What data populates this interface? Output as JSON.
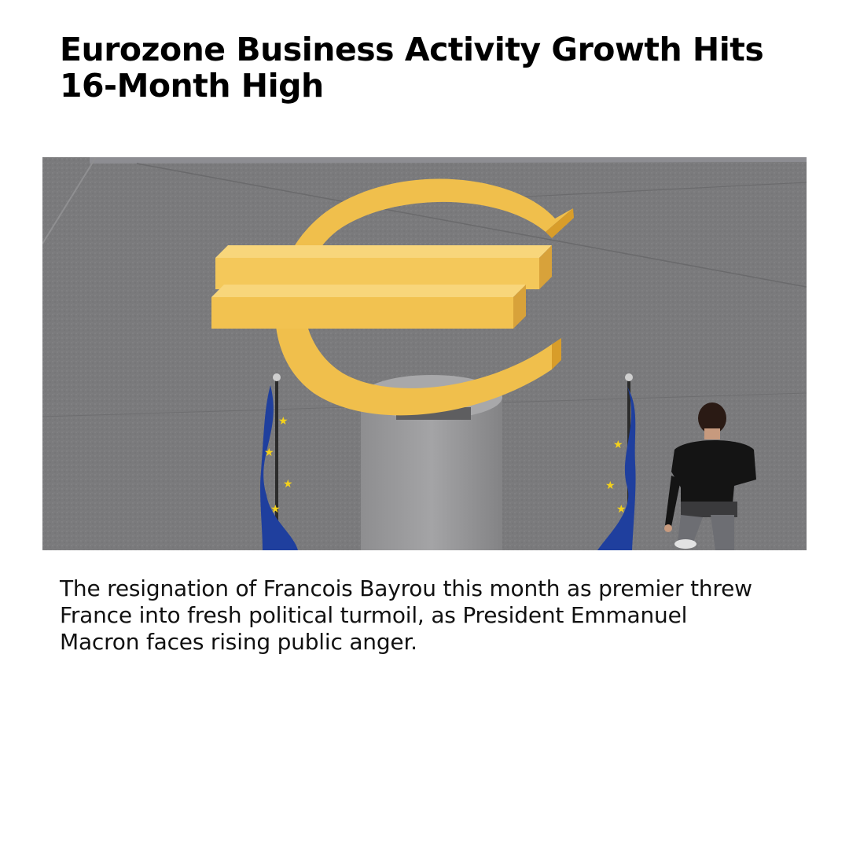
{
  "article": {
    "headline": "Eurozone Business Activity Growth Hits 16-Month High",
    "summary": "The resignation of Francois Bayrou this month as premier threw France into fresh political turmoil, as President Emmanuel Macron faces rising public anger."
  },
  "colors": {
    "background": "#ffffff",
    "text": "#000000",
    "floor": "#7b7b7d",
    "euro_gold": "#f0bf4c",
    "flag_blue": "#1f3f9e",
    "flag_star": "#f5d21a"
  }
}
